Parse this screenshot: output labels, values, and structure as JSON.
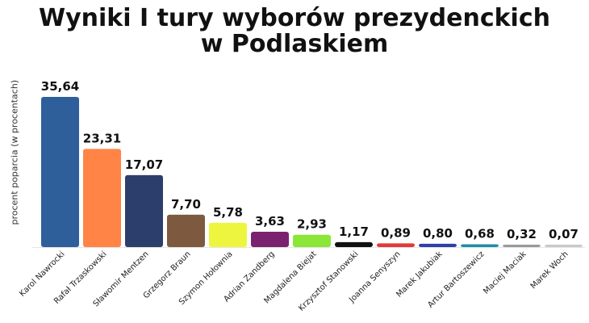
{
  "chart_data": {
    "type": "bar",
    "title_lines": [
      "Wyniki I tury wyborów prezydenckich",
      "w Podlaskiem"
    ],
    "ylabel": "procent poparcia (w procentach)",
    "xlabel": "",
    "ylim": [
      0,
      35.64
    ],
    "grid": false,
    "categories": [
      "Karol Nawrocki",
      "Rafał Trzaskowski",
      "Sławomir Mentzen",
      "Grzegorz Braun",
      "Szymon Hołownia",
      "Adrian Zandberg",
      "Magdalena Biejat",
      "Krzysztof Stanowski",
      "Joanna Senyszyn",
      "Marek Jakubiak",
      "Artur Bartoszewicz",
      "Maciej Maciak",
      "Marek Woch"
    ],
    "values": [
      35.64,
      23.31,
      17.07,
      7.7,
      5.78,
      3.63,
      2.93,
      1.17,
      0.89,
      0.8,
      0.68,
      0.32,
      0.07
    ],
    "value_labels": [
      "35,64",
      "23,31",
      "17,07",
      "7,70",
      "5,78",
      "3,63",
      "2,93",
      "1,17",
      "0,89",
      "0,80",
      "0,68",
      "0,32",
      "0,07"
    ],
    "colors": [
      "#2e5f9a",
      "#ff8446",
      "#2c3e6b",
      "#7d5a3f",
      "#eef53e",
      "#7a2270",
      "#8be637",
      "#111111",
      "#e03a3a",
      "#2d3fa8",
      "#1b8fa3",
      "#9a9a9a",
      "#c9c9c9"
    ]
  }
}
